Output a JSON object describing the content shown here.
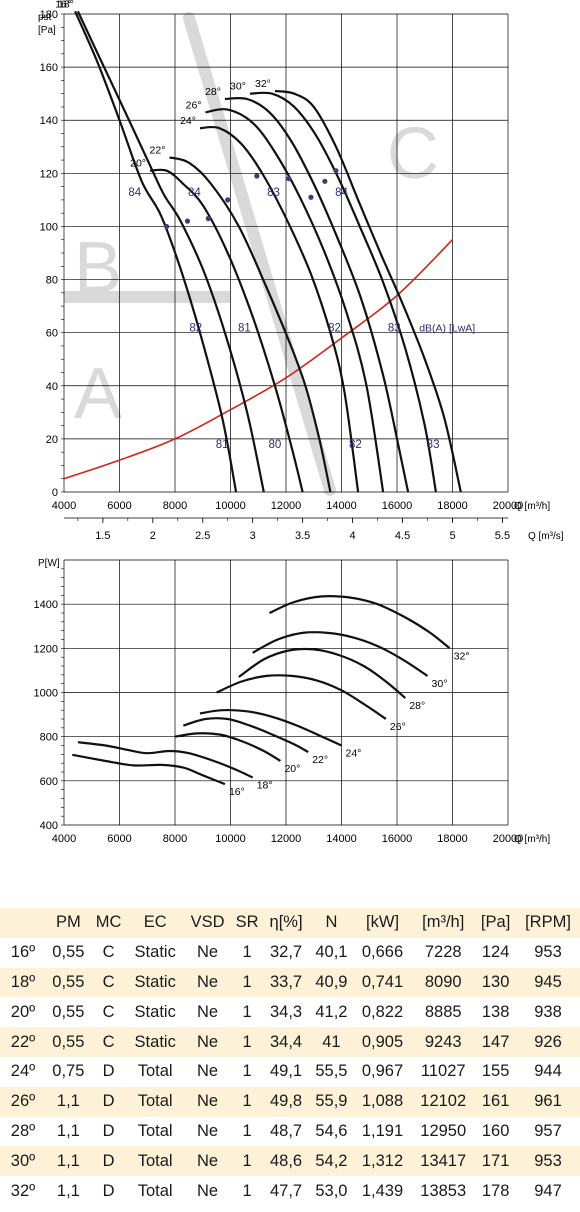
{
  "chart_data": [
    {
      "type": "line",
      "title": "",
      "y_axis_label": "pst [Pa]",
      "x_axis_label": "Q [m³/h]",
      "x2_axis_label": "Q [m³/s]",
      "xlim": [
        4000,
        20000
      ],
      "ylim": [
        0,
        180
      ],
      "x_ticks": [
        4000,
        6000,
        8000,
        10000,
        12000,
        14000,
        16000,
        18000,
        20000
      ],
      "y_ticks": [
        0,
        20,
        40,
        60,
        80,
        100,
        120,
        140,
        160,
        180
      ],
      "x2_ticks": [
        "1.5",
        "2",
        "2.5",
        "3",
        "3.5",
        "4",
        "4.5",
        "5",
        "5.5"
      ],
      "zone_letters": [
        "A",
        "B",
        "C"
      ],
      "series": [
        {
          "name": "16°",
          "points": [
            [
              4400,
              181
            ],
            [
              5200,
              162
            ],
            [
              6000,
              140
            ],
            [
              6800,
              117
            ],
            [
              7500,
              104
            ],
            [
              8200,
              84
            ],
            [
              8900,
              60
            ],
            [
              9700,
              28
            ],
            [
              10200,
              0
            ]
          ]
        },
        {
          "name": "18°",
          "points": [
            [
              4500,
              181
            ],
            [
              5400,
              161
            ],
            [
              6300,
              141
            ],
            [
              7100,
              123
            ],
            [
              7600,
              112
            ],
            [
              8200,
              102
            ],
            [
              9000,
              84
            ],
            [
              9800,
              60
            ],
            [
              10600,
              30
            ],
            [
              11200,
              0
            ]
          ]
        },
        {
          "name": "20°",
          "points": [
            [
              7100,
              121
            ],
            [
              7700,
              121
            ],
            [
              8300,
              116
            ],
            [
              9000,
              108
            ],
            [
              9900,
              90
            ],
            [
              10800,
              66
            ],
            [
              11600,
              40
            ],
            [
              12200,
              17
            ],
            [
              12600,
              0
            ]
          ]
        },
        {
          "name": "22°",
          "points": [
            [
              7800,
              126
            ],
            [
              8500,
              124
            ],
            [
              9300,
              116
            ],
            [
              10300,
              100
            ],
            [
              11300,
              77
            ],
            [
              12100,
              57
            ],
            [
              12700,
              40
            ],
            [
              13200,
              20
            ],
            [
              13600,
              0
            ]
          ]
        },
        {
          "name": "24°",
          "points": [
            [
              8900,
              137
            ],
            [
              9600,
              137
            ],
            [
              10400,
              131
            ],
            [
              11200,
              119
            ],
            [
              12100,
              101
            ],
            [
              12900,
              82
            ],
            [
              13600,
              60
            ],
            [
              14100,
              38
            ],
            [
              14600,
              0
            ]
          ]
        },
        {
          "name": "26°",
          "points": [
            [
              9100,
              143
            ],
            [
              9900,
              144
            ],
            [
              10800,
              139
            ],
            [
              11600,
              128
            ],
            [
              12500,
              111
            ],
            [
              13400,
              90
            ],
            [
              14200,
              67
            ],
            [
              14900,
              40
            ],
            [
              15500,
              0
            ]
          ]
        },
        {
          "name": "28°",
          "points": [
            [
              9800,
              148
            ],
            [
              10600,
              148
            ],
            [
              11400,
              143
            ],
            [
              12200,
              132
            ],
            [
              13000,
              116
            ],
            [
              13800,
              97
            ],
            [
              14700,
              73
            ],
            [
              15500,
              44
            ],
            [
              16100,
              15
            ],
            [
              16400,
              0
            ]
          ]
        },
        {
          "name": "30°",
          "points": [
            [
              10700,
              150
            ],
            [
              11500,
              150
            ],
            [
              12300,
              145
            ],
            [
              13100,
              134
            ],
            [
              13900,
              118
            ],
            [
              14700,
              99
            ],
            [
              15500,
              79
            ],
            [
              16300,
              54
            ],
            [
              17000,
              25
            ],
            [
              17400,
              0
            ]
          ]
        },
        {
          "name": "32°",
          "points": [
            [
              11600,
              151
            ],
            [
              12300,
              150
            ],
            [
              13000,
              145
            ],
            [
              13800,
              130
            ],
            [
              14600,
              110
            ],
            [
              15400,
              90
            ],
            [
              16200,
              71
            ],
            [
              17000,
              50
            ],
            [
              17700,
              28
            ],
            [
              18300,
              0
            ]
          ]
        }
      ],
      "system_curve": {
        "points": [
          [
            4000,
            5
          ],
          [
            6000,
            12
          ],
          [
            8000,
            20
          ],
          [
            10000,
            31
          ],
          [
            12000,
            43
          ],
          [
            14000,
            58
          ],
          [
            16000,
            74
          ],
          [
            18000,
            95
          ]
        ]
      },
      "labels": [
        {
          "text": "84",
          "x": 6550,
          "y": 113
        },
        {
          "text": "84",
          "x": 8700,
          "y": 113
        },
        {
          "text": "83",
          "x": 11550,
          "y": 113
        },
        {
          "text": "84",
          "x": 14000,
          "y": 113
        },
        {
          "text": "82",
          "x": 8750,
          "y": 62
        },
        {
          "text": "81",
          "x": 10500,
          "y": 62
        },
        {
          "text": "82",
          "x": 13750,
          "y": 62
        },
        {
          "text": "83",
          "x": 15900,
          "y": 62
        },
        {
          "text": "dB(A) [LwA]",
          "x": 16800,
          "y": 62
        },
        {
          "text": "81",
          "x": 9700,
          "y": 18
        },
        {
          "text": "80",
          "x": 11600,
          "y": 18
        },
        {
          "text": "82",
          "x": 14500,
          "y": 18
        },
        {
          "text": "83",
          "x": 17300,
          "y": 18
        }
      ]
    },
    {
      "type": "line",
      "title": "",
      "y_axis_label": "P[W]",
      "x_axis_label": "Q [m³/h]",
      "xlim": [
        4000,
        20000
      ],
      "ylim": [
        400,
        1600
      ],
      "x_ticks": [
        4000,
        6000,
        8000,
        10000,
        12000,
        14000,
        16000,
        18000,
        20000
      ],
      "y_ticks": [
        400,
        600,
        800,
        1000,
        1200,
        1400
      ],
      "series": [
        {
          "name": "16°",
          "points": [
            [
              4300,
              718
            ],
            [
              5500,
              690
            ],
            [
              6500,
              670
            ],
            [
              7500,
              672
            ],
            [
              8300,
              660
            ],
            [
              9000,
              625
            ],
            [
              9800,
              585
            ]
          ]
        },
        {
          "name": "18°",
          "points": [
            [
              4500,
              775
            ],
            [
              5500,
              760
            ],
            [
              6300,
              740
            ],
            [
              7000,
              725
            ],
            [
              7800,
              735
            ],
            [
              8500,
              725
            ],
            [
              9400,
              690
            ],
            [
              10200,
              650
            ],
            [
              10800,
              615
            ]
          ]
        },
        {
          "name": "20°",
          "points": [
            [
              8000,
              800
            ],
            [
              8800,
              815
            ],
            [
              9600,
              810
            ],
            [
              10400,
              780
            ],
            [
              11200,
              735
            ],
            [
              11800,
              690
            ]
          ]
        },
        {
          "name": "22°",
          "points": [
            [
              8300,
              850
            ],
            [
              9100,
              880
            ],
            [
              9900,
              880
            ],
            [
              10700,
              850
            ],
            [
              11500,
              810
            ],
            [
              12300,
              765
            ],
            [
              12800,
              730
            ]
          ]
        },
        {
          "name": "24°",
          "points": [
            [
              8900,
              905
            ],
            [
              9700,
              920
            ],
            [
              10600,
              915
            ],
            [
              11500,
              890
            ],
            [
              12400,
              850
            ],
            [
              13300,
              800
            ],
            [
              14000,
              760
            ]
          ]
        },
        {
          "name": "26°",
          "points": [
            [
              9500,
              1000
            ],
            [
              10400,
              1050
            ],
            [
              11300,
              1075
            ],
            [
              12200,
              1075
            ],
            [
              13100,
              1055
            ],
            [
              14000,
              1010
            ],
            [
              14900,
              940
            ],
            [
              15600,
              880
            ]
          ]
        },
        {
          "name": "28°",
          "points": [
            [
              10300,
              1070
            ],
            [
              11200,
              1150
            ],
            [
              12100,
              1190
            ],
            [
              13000,
              1195
            ],
            [
              13900,
              1170
            ],
            [
              14800,
              1120
            ],
            [
              15600,
              1050
            ],
            [
              16300,
              975
            ]
          ]
        },
        {
          "name": "30°",
          "points": [
            [
              10800,
              1180
            ],
            [
              11700,
              1240
            ],
            [
              12600,
              1270
            ],
            [
              13500,
              1270
            ],
            [
              14400,
              1250
            ],
            [
              15300,
              1210
            ],
            [
              16200,
              1150
            ],
            [
              17100,
              1075
            ]
          ]
        },
        {
          "name": "32°",
          "points": [
            [
              11400,
              1360
            ],
            [
              12300,
              1410
            ],
            [
              13300,
              1435
            ],
            [
              14300,
              1430
            ],
            [
              15300,
              1400
            ],
            [
              16300,
              1340
            ],
            [
              17200,
              1270
            ],
            [
              17900,
              1200
            ]
          ]
        }
      ]
    }
  ],
  "table": {
    "headers": [
      "",
      "PM",
      "MC",
      "EC",
      "VSD",
      "SR",
      "η[%]",
      "N",
      "[kW]",
      "[m³/h]",
      "[Pa]",
      "[RPM]"
    ],
    "rows": [
      [
        "16º",
        "0,55",
        "C",
        "Static",
        "Ne",
        "1",
        "32,7",
        "40,1",
        "0,666",
        "7228",
        "124",
        "953"
      ],
      [
        "18º",
        "0,55",
        "C",
        "Static",
        "Ne",
        "1",
        "33,7",
        "40,9",
        "0,741",
        "8090",
        "130",
        "945"
      ],
      [
        "20º",
        "0,55",
        "C",
        "Static",
        "Ne",
        "1",
        "34,3",
        "41,2",
        "0,822",
        "8885",
        "138",
        "938"
      ],
      [
        "22º",
        "0,55",
        "C",
        "Static",
        "Ne",
        "1",
        "34,4",
        "41",
        "0,905",
        "9243",
        "147",
        "926"
      ],
      [
        "24º",
        "0,75",
        "D",
        "Total",
        "Ne",
        "1",
        "49,1",
        "55,5",
        "0,967",
        "11027",
        "155",
        "944"
      ],
      [
        "26º",
        "1,1",
        "D",
        "Total",
        "Ne",
        "1",
        "49,8",
        "55,9",
        "1,088",
        "12102",
        "161",
        "961"
      ],
      [
        "28º",
        "1,1",
        "D",
        "Total",
        "Ne",
        "1",
        "48,7",
        "54,6",
        "1,191",
        "12950",
        "160",
        "957"
      ],
      [
        "30º",
        "1,1",
        "D",
        "Total",
        "Ne",
        "1",
        "48,6",
        "54,2",
        "1,312",
        "13417",
        "171",
        "953"
      ],
      [
        "32º",
        "1,1",
        "D",
        "Total",
        "Ne",
        "1",
        "47,7",
        "53,0",
        "1,439",
        "13853",
        "178",
        "947"
      ]
    ]
  },
  "colors": {
    "curve": "#111111",
    "system_curve": "#d0241b",
    "db_label": "#2b2d7a",
    "zone": "#d9d9d9",
    "table_shade": "#fdf2d8"
  }
}
